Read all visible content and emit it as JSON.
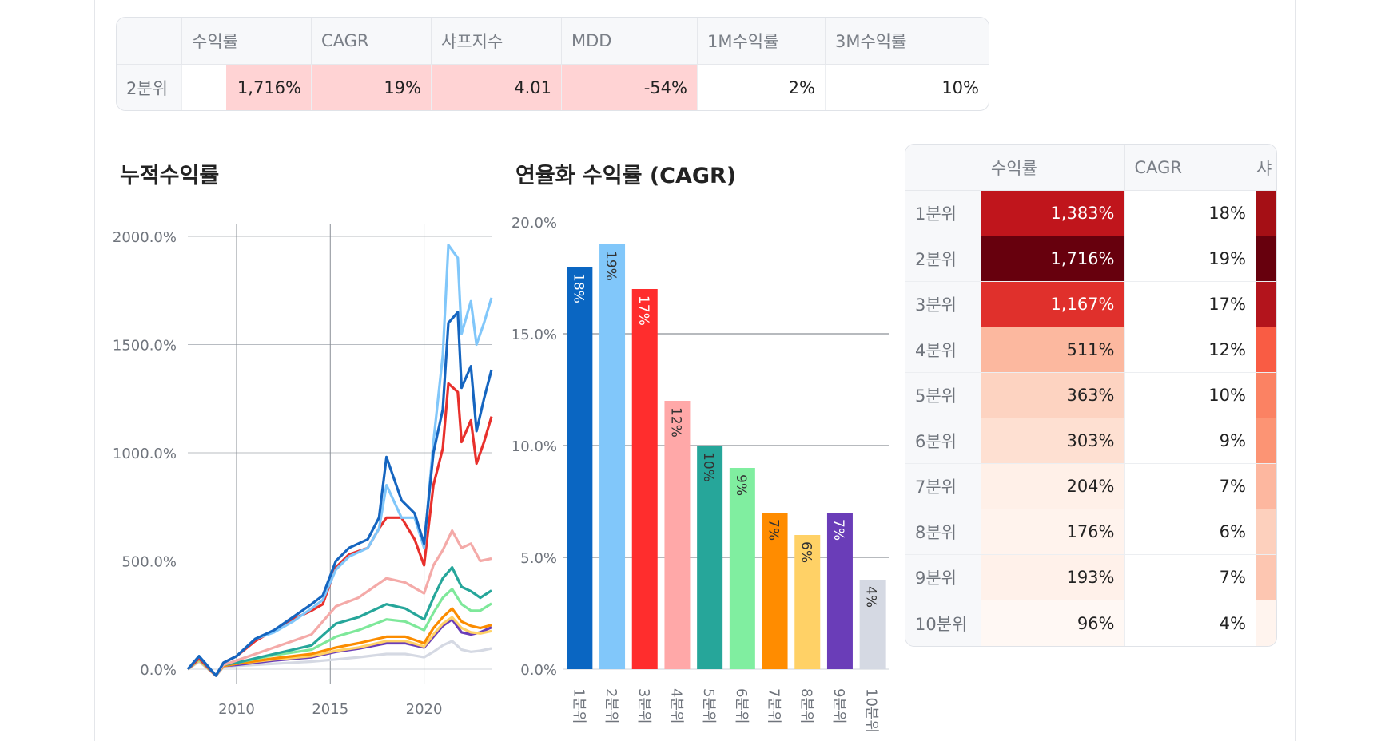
{
  "summary_table": {
    "headers": [
      "",
      "수익률",
      "CAGR",
      "샤프지수",
      "MDD",
      "1M수익률",
      "3M수익률"
    ],
    "row": {
      "label": "2분위",
      "values": [
        "1,716%",
        "19%",
        "4.01",
        "-54%",
        "2%",
        "10%"
      ]
    },
    "highlight_color": "#ffd3d4"
  },
  "quantile_table": {
    "headers": [
      "",
      "수익률",
      "CAGR",
      "샤"
    ],
    "rows": [
      {
        "label": "1분위",
        "return": "1,383%",
        "cagr": "18%",
        "return_color": "#c0151c",
        "stub_color": "#a50f15",
        "return_text_color": "#ffffff"
      },
      {
        "label": "2분위",
        "return": "1,716%",
        "cagr": "19%",
        "return_color": "#67000d",
        "stub_color": "#67000d",
        "return_text_color": "#ffffff"
      },
      {
        "label": "3분위",
        "return": "1,167%",
        "cagr": "17%",
        "return_color": "#e0302c",
        "stub_color": "#b3141c",
        "return_text_color": "#ffffff"
      },
      {
        "label": "4분위",
        "return": "511%",
        "cagr": "12%",
        "return_color": "#fcb89f",
        "stub_color": "#f95c44",
        "return_text_color": "#222222"
      },
      {
        "label": "5분위",
        "return": "363%",
        "cagr": "10%",
        "return_color": "#fdd3c1",
        "stub_color": "#fb8263",
        "return_text_color": "#222222"
      },
      {
        "label": "6분위",
        "return": "303%",
        "cagr": "9%",
        "return_color": "#fee0d2",
        "stub_color": "#fc9474",
        "return_text_color": "#222222"
      },
      {
        "label": "7분위",
        "return": "204%",
        "cagr": "7%",
        "return_color": "#fff0e8",
        "stub_color": "#fdb79f",
        "return_text_color": "#222222"
      },
      {
        "label": "8분위",
        "return": "176%",
        "cagr": "6%",
        "return_color": "#fff3ed",
        "stub_color": "#fdd0bd",
        "return_text_color": "#222222"
      },
      {
        "label": "9분위",
        "return": "193%",
        "cagr": "7%",
        "return_color": "#fff1ea",
        "stub_color": "#fdc6b1",
        "return_text_color": "#222222"
      },
      {
        "label": "10분위",
        "return": "96%",
        "cagr": "4%",
        "return_color": "#fff8f4",
        "stub_color": "#fff4ee",
        "return_text_color": "#222222"
      }
    ]
  },
  "chart_data": [
    {
      "type": "line",
      "title": "누적수익률",
      "xlabel": "",
      "ylabel": "",
      "xlim": [
        2007.4,
        2023.6
      ],
      "ylim": [
        0,
        2000
      ],
      "x_ticks": [
        2010,
        2015,
        2020
      ],
      "y_ticks": [
        "0.0%",
        "500.0%",
        "1000.0%",
        "1500.0%",
        "2000.0%"
      ],
      "y_tick_values": [
        0,
        500,
        1000,
        1500,
        2000
      ],
      "grid": true,
      "legend": "none",
      "series": [
        {
          "color": "#1565c0",
          "x": [
            2007.4,
            2008.0,
            2008.9,
            2009.3,
            2010.0,
            2011.0,
            2012.0,
            2013.0,
            2014.0,
            2014.6,
            2015.3,
            2016.0,
            2017.0,
            2017.6,
            2018.0,
            2018.8,
            2019.5,
            2020.0,
            2020.5,
            2021.0,
            2021.3,
            2021.8,
            2022.0,
            2022.5,
            2022.8,
            2023.2,
            2023.6
          ],
          "y": [
            0,
            60,
            -30,
            30,
            60,
            140,
            180,
            240,
            300,
            340,
            500,
            560,
            600,
            700,
            980,
            780,
            720,
            580,
            1000,
            1200,
            1600,
            1650,
            1300,
            1400,
            1100,
            1250,
            1383
          ]
        },
        {
          "color": "#81c7fa",
          "x": [
            2007.4,
            2008.0,
            2008.9,
            2009.3,
            2010.0,
            2011.0,
            2012.0,
            2013.0,
            2014.0,
            2014.6,
            2015.3,
            2016.0,
            2017.0,
            2017.6,
            2018.0,
            2018.8,
            2019.5,
            2020.0,
            2020.5,
            2021.0,
            2021.3,
            2021.8,
            2022.0,
            2022.5,
            2022.8,
            2023.2,
            2023.6
          ],
          "y": [
            0,
            60,
            -30,
            30,
            60,
            140,
            170,
            220,
            280,
            320,
            460,
            520,
            560,
            650,
            850,
            700,
            700,
            560,
            1050,
            1450,
            1960,
            1900,
            1550,
            1700,
            1500,
            1600,
            1716
          ]
        },
        {
          "color": "#e8302c",
          "x": [
            2007.4,
            2008.0,
            2008.9,
            2009.3,
            2010.0,
            2011.0,
            2012.0,
            2013.0,
            2014.0,
            2014.6,
            2015.3,
            2016.0,
            2017.0,
            2017.6,
            2018.0,
            2018.8,
            2019.5,
            2020.0,
            2020.5,
            2021.0,
            2021.3,
            2021.8,
            2022.0,
            2022.5,
            2022.8,
            2023.2,
            2023.6
          ],
          "y": [
            0,
            50,
            -30,
            30,
            60,
            130,
            180,
            230,
            270,
            300,
            470,
            530,
            560,
            650,
            700,
            700,
            600,
            480,
            850,
            1020,
            1320,
            1280,
            1050,
            1150,
            950,
            1050,
            1167
          ]
        },
        {
          "color": "#f4aaa8",
          "x": [
            2007.4,
            2008.0,
            2008.9,
            2009.3,
            2010.0,
            2012.0,
            2014.0,
            2015.3,
            2016.5,
            2018.0,
            2019.0,
            2020.0,
            2020.5,
            2021.0,
            2021.5,
            2022.0,
            2022.5,
            2023.0,
            2023.6
          ],
          "y": [
            0,
            50,
            -30,
            20,
            40,
            100,
            160,
            290,
            330,
            420,
            400,
            350,
            480,
            550,
            640,
            560,
            580,
            500,
            511
          ]
        },
        {
          "color": "#26a69a",
          "x": [
            2007.4,
            2008.0,
            2008.9,
            2009.3,
            2010.0,
            2012.0,
            2014.0,
            2015.3,
            2016.5,
            2018.0,
            2019.0,
            2020.0,
            2020.5,
            2021.0,
            2021.5,
            2022.0,
            2022.5,
            2023.0,
            2023.6
          ],
          "y": [
            0,
            50,
            -30,
            20,
            30,
            70,
            110,
            210,
            240,
            300,
            280,
            230,
            330,
            420,
            470,
            380,
            360,
            330,
            363
          ]
        },
        {
          "color": "#7ee89a",
          "x": [
            2007.4,
            2008.0,
            2008.9,
            2009.3,
            2010.0,
            2012.0,
            2014.0,
            2015.3,
            2016.5,
            2018.0,
            2019.0,
            2020.0,
            2020.5,
            2021.0,
            2021.5,
            2022.0,
            2022.5,
            2023.0,
            2023.6
          ],
          "y": [
            0,
            45,
            -30,
            20,
            30,
            65,
            90,
            150,
            180,
            230,
            220,
            180,
            260,
            330,
            370,
            300,
            270,
            270,
            303
          ]
        },
        {
          "color": "#fb8c00",
          "x": [
            2007.4,
            2008.0,
            2008.9,
            2009.3,
            2010.0,
            2012.0,
            2014.0,
            2015.3,
            2016.5,
            2018.0,
            2019.0,
            2020.0,
            2020.5,
            2021.0,
            2021.5,
            2022.0,
            2022.5,
            2023.0,
            2023.6
          ],
          "y": [
            0,
            45,
            -30,
            15,
            25,
            50,
            70,
            100,
            120,
            150,
            150,
            120,
            190,
            240,
            280,
            220,
            200,
            190,
            204
          ]
        },
        {
          "color": "#ffd166",
          "x": [
            2007.4,
            2008.0,
            2008.9,
            2009.3,
            2010.0,
            2012.0,
            2014.0,
            2015.3,
            2016.5,
            2018.0,
            2019.0,
            2020.0,
            2020.5,
            2021.0,
            2021.5,
            2022.0,
            2022.5,
            2023.0,
            2023.6
          ],
          "y": [
            0,
            40,
            -30,
            15,
            25,
            45,
            60,
            85,
            100,
            130,
            130,
            105,
            160,
            210,
            240,
            190,
            170,
            165,
            176
          ]
        },
        {
          "color": "#6a3db8",
          "x": [
            2007.4,
            2008.0,
            2008.9,
            2009.3,
            2010.0,
            2012.0,
            2014.0,
            2015.3,
            2016.5,
            2018.0,
            2019.0,
            2020.0,
            2020.5,
            2021.0,
            2021.5,
            2022.0,
            2022.5,
            2023.0,
            2023.6
          ],
          "y": [
            0,
            40,
            -30,
            15,
            20,
            40,
            55,
            80,
            95,
            120,
            120,
            100,
            150,
            200,
            230,
            170,
            160,
            170,
            193
          ]
        },
        {
          "color": "#d5d9e3",
          "x": [
            2007.4,
            2008.0,
            2008.9,
            2009.3,
            2010.0,
            2012.0,
            2014.0,
            2015.3,
            2016.5,
            2018.0,
            2019.0,
            2020.0,
            2020.5,
            2021.0,
            2021.5,
            2022.0,
            2022.5,
            2023.0,
            2023.6
          ],
          "y": [
            0,
            35,
            -30,
            10,
            15,
            25,
            35,
            45,
            55,
            70,
            70,
            55,
            80,
            110,
            130,
            90,
            80,
            85,
            96
          ]
        }
      ]
    },
    {
      "type": "bar",
      "title": "연율화 수익률 (CAGR)",
      "xlabel": "",
      "ylabel": "",
      "ylim": [
        0,
        20
      ],
      "y_ticks": [
        "0.0%",
        "5.0%",
        "10.0%",
        "15.0%",
        "20.0%"
      ],
      "y_tick_values": [
        0,
        5,
        10,
        15,
        20
      ],
      "grid": true,
      "legend": "none",
      "categories": [
        "1분위",
        "2분위",
        "3분위",
        "4분위",
        "5분위",
        "6분위",
        "7분위",
        "8분위",
        "9분위",
        "10분위"
      ],
      "values": [
        18,
        19,
        17,
        12,
        10,
        9,
        7,
        6,
        7,
        4
      ],
      "labels": [
        "18%",
        "19%",
        "17%",
        "12%",
        "10%",
        "9%",
        "7%",
        "6%",
        "7%",
        "4%"
      ],
      "colors": [
        "#0a66c2",
        "#81c7fa",
        "#ff2d2d",
        "#ffa8a8",
        "#26a69a",
        "#80eea0",
        "#ff8c00",
        "#ffd166",
        "#6a3db8",
        "#d5d9e3"
      ],
      "label_colors": [
        "#ffffff",
        "#333333",
        "#ffffff",
        "#333333",
        "#333333",
        "#333333",
        "#333333",
        "#333333",
        "#ffffff",
        "#333333"
      ]
    }
  ]
}
